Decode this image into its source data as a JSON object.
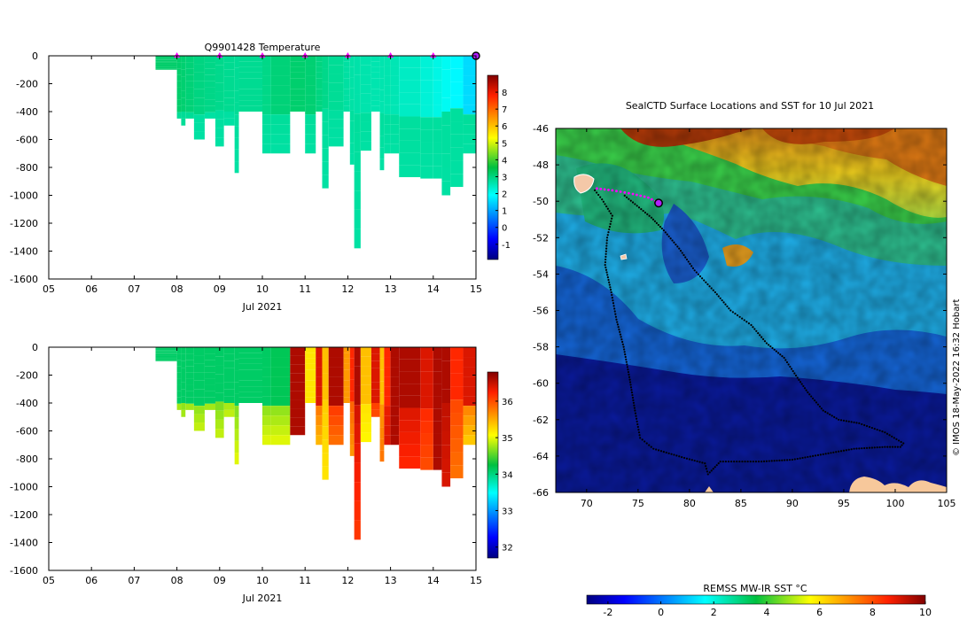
{
  "chart_data": [
    {
      "type": "heatmap",
      "panel": "temperature-section",
      "title": "Q9901428  Temperature",
      "xlabel": "Jul 2021",
      "ylabel": "",
      "x_ticks": [
        "05",
        "06",
        "07",
        "08",
        "09",
        "10",
        "11",
        "12",
        "13",
        "14",
        "15"
      ],
      "y_ticks": [
        0,
        -200,
        -400,
        -600,
        -800,
        -1000,
        -1200,
        -1400,
        -1600
      ],
      "xlim": [
        5,
        15
      ],
      "ylim": [
        -1600,
        0
      ],
      "colorbar": {
        "ticks": [
          -1,
          0,
          1,
          2,
          3,
          4,
          5,
          6,
          7,
          8
        ],
        "range": [
          -1.9,
          9
        ]
      },
      "profile_marker_days": [
        8,
        9,
        10,
        11,
        12,
        13,
        14
      ],
      "current_position_day": 15,
      "profiles": [
        {
          "start": 7.5,
          "end": 8.0,
          "depth": -100,
          "v_top": 3.2,
          "v_bottom": 3.2
        },
        {
          "start": 8.0,
          "end": 8.1,
          "depth": -450,
          "v_top": 3.0,
          "v_bottom": 2.8
        },
        {
          "start": 8.1,
          "end": 8.2,
          "depth": -500,
          "v_top": 2.9,
          "v_bottom": 2.8
        },
        {
          "start": 8.2,
          "end": 8.4,
          "depth": -450,
          "v_top": 2.9,
          "v_bottom": 2.8
        },
        {
          "start": 8.4,
          "end": 8.65,
          "depth": -600,
          "v_top": 2.8,
          "v_bottom": 2.7
        },
        {
          "start": 8.65,
          "end": 8.9,
          "depth": -450,
          "v_top": 2.8,
          "v_bottom": 2.7
        },
        {
          "start": 8.9,
          "end": 9.1,
          "depth": -650,
          "v_top": 2.8,
          "v_bottom": 2.7
        },
        {
          "start": 9.1,
          "end": 9.35,
          "depth": -500,
          "v_top": 2.8,
          "v_bottom": 2.7
        },
        {
          "start": 9.35,
          "end": 9.45,
          "depth": -840,
          "v_top": 2.8,
          "v_bottom": 2.7
        },
        {
          "start": 9.45,
          "end": 10.0,
          "depth": -400,
          "v_top": 2.8,
          "v_bottom": 2.7
        },
        {
          "start": 10.0,
          "end": 10.2,
          "depth": -700,
          "v_top": 2.9,
          "v_bottom": 2.7
        },
        {
          "start": 10.2,
          "end": 10.65,
          "depth": -700,
          "v_top": 2.9,
          "v_bottom": 2.7
        },
        {
          "start": 10.65,
          "end": 11.0,
          "depth": -400,
          "v_top": 2.9,
          "v_bottom": 2.7
        },
        {
          "start": 11.0,
          "end": 11.25,
          "depth": -700,
          "v_top": 2.9,
          "v_bottom": 2.7
        },
        {
          "start": 11.25,
          "end": 11.4,
          "depth": -400,
          "v_top": 2.9,
          "v_bottom": 2.7
        },
        {
          "start": 11.4,
          "end": 11.55,
          "depth": -950,
          "v_top": 2.8,
          "v_bottom": 2.7
        },
        {
          "start": 11.55,
          "end": 11.9,
          "depth": -650,
          "v_top": 2.8,
          "v_bottom": 2.7
        },
        {
          "start": 11.9,
          "end": 12.05,
          "depth": -400,
          "v_top": 2.8,
          "v_bottom": 2.7
        },
        {
          "start": 12.05,
          "end": 12.15,
          "depth": -780,
          "v_top": 2.8,
          "v_bottom": 2.7
        },
        {
          "start": 12.15,
          "end": 12.3,
          "depth": -1380,
          "v_top": 2.8,
          "v_bottom": 2.7
        },
        {
          "start": 12.3,
          "end": 12.55,
          "depth": -680,
          "v_top": 2.8,
          "v_bottom": 2.7
        },
        {
          "start": 12.55,
          "end": 12.75,
          "depth": -400,
          "v_top": 2.8,
          "v_bottom": 2.7
        },
        {
          "start": 12.75,
          "end": 12.85,
          "depth": -820,
          "v_top": 2.8,
          "v_bottom": 2.7
        },
        {
          "start": 12.85,
          "end": 13.0,
          "depth": -700,
          "v_top": 2.8,
          "v_bottom": 2.7
        },
        {
          "start": 13.0,
          "end": 13.2,
          "depth": -700,
          "v_top": 2.8,
          "v_bottom": 2.7
        },
        {
          "start": 13.2,
          "end": 13.7,
          "depth": -870,
          "v_top": 2.8,
          "v_bottom": 2.7
        },
        {
          "start": 13.7,
          "end": 14.0,
          "depth": -880,
          "v_top": 2.8,
          "v_bottom": 2.7
        },
        {
          "start": 14.0,
          "end": 14.2,
          "depth": -880,
          "v_top": 2.8,
          "v_bottom": 2.7
        },
        {
          "start": 14.2,
          "end": 14.4,
          "depth": -1000,
          "v_top": 2.8,
          "v_bottom": 2.7
        },
        {
          "start": 14.4,
          "end": 14.7,
          "depth": -940,
          "v_top": 2.8,
          "v_bottom": 2.7
        },
        {
          "start": 14.7,
          "end": 15.0,
          "depth": -700,
          "v_top": 2.9,
          "v_bottom": 2.7
        }
      ],
      "upper_layer": {
        "depth": -400,
        "values_by_day": [
          [
            8,
            3.2
          ],
          [
            8.5,
            3.0
          ],
          [
            9,
            2.9
          ],
          [
            9.5,
            2.8
          ],
          [
            10,
            2.9
          ],
          [
            10.5,
            3.1
          ],
          [
            11,
            3.2
          ],
          [
            11.5,
            2.9
          ],
          [
            12,
            2.7
          ],
          [
            12.5,
            2.6
          ],
          [
            13,
            2.6
          ],
          [
            13.5,
            2.4
          ],
          [
            14,
            2.2
          ],
          [
            14.5,
            1.9
          ],
          [
            15,
            1.4
          ]
        ]
      }
    },
    {
      "type": "heatmap",
      "panel": "salinity-section",
      "title": "",
      "xlabel": "Jul 2021",
      "ylabel": "",
      "x_ticks": [
        "05",
        "06",
        "07",
        "08",
        "09",
        "10",
        "11",
        "12",
        "13",
        "14",
        "15"
      ],
      "y_ticks": [
        0,
        -200,
        -400,
        -600,
        -800,
        -1000,
        -1200,
        -1400,
        -1600
      ],
      "xlim": [
        5,
        15
      ],
      "ylim": [
        -1600,
        0
      ],
      "colorbar": {
        "ticks": [
          32,
          33,
          34,
          35,
          36
        ],
        "range": [
          31.7,
          36.8
        ]
      },
      "profiles": [
        {
          "start": 7.5,
          "end": 8.0,
          "depth": -100,
          "v_top": 34.1,
          "v_bottom": 34.1
        },
        {
          "start": 8.0,
          "end": 8.1,
          "depth": -450,
          "v_top": 34.2,
          "v_bottom": 34.8
        },
        {
          "start": 8.1,
          "end": 8.2,
          "depth": -500,
          "v_top": 34.2,
          "v_bottom": 34.8
        },
        {
          "start": 8.2,
          "end": 8.4,
          "depth": -450,
          "v_top": 34.2,
          "v_bottom": 34.8
        },
        {
          "start": 8.4,
          "end": 8.65,
          "depth": -600,
          "v_top": 34.2,
          "v_bottom": 34.9
        },
        {
          "start": 8.65,
          "end": 8.9,
          "depth": -450,
          "v_top": 34.2,
          "v_bottom": 34.8
        },
        {
          "start": 8.9,
          "end": 9.1,
          "depth": -650,
          "v_top": 34.2,
          "v_bottom": 34.9
        },
        {
          "start": 9.1,
          "end": 9.35,
          "depth": -500,
          "v_top": 34.2,
          "v_bottom": 34.9
        },
        {
          "start": 9.35,
          "end": 9.45,
          "depth": -840,
          "v_top": 34.3,
          "v_bottom": 35.0
        },
        {
          "start": 9.45,
          "end": 10.0,
          "depth": -400,
          "v_top": 34.2,
          "v_bottom": 34.7
        },
        {
          "start": 10.0,
          "end": 10.2,
          "depth": -700,
          "v_top": 34.2,
          "v_bottom": 35.0
        },
        {
          "start": 10.2,
          "end": 10.65,
          "depth": -700,
          "v_top": 34.2,
          "v_bottom": 35.0
        },
        {
          "start": 10.65,
          "end": 11.0,
          "depth": -630,
          "v_top": 36.6,
          "v_bottom": 36.6
        },
        {
          "start": 11.0,
          "end": 11.25,
          "depth": -400,
          "v_top": 35.2,
          "v_bottom": 35.6
        },
        {
          "start": 11.25,
          "end": 11.4,
          "depth": -700,
          "v_top": 36.4,
          "v_bottom": 35.4
        },
        {
          "start": 11.4,
          "end": 11.55,
          "depth": -950,
          "v_top": 35.4,
          "v_bottom": 35.2
        },
        {
          "start": 11.55,
          "end": 11.9,
          "depth": -700,
          "v_top": 36.6,
          "v_bottom": 35.8
        },
        {
          "start": 11.9,
          "end": 12.05,
          "depth": -400,
          "v_top": 35.6,
          "v_bottom": 35.8
        },
        {
          "start": 12.05,
          "end": 12.15,
          "depth": -780,
          "v_top": 36.2,
          "v_bottom": 35.6
        },
        {
          "start": 12.15,
          "end": 12.3,
          "depth": -1380,
          "v_top": 36.6,
          "v_bottom": 36.1
        },
        {
          "start": 12.3,
          "end": 12.55,
          "depth": -680,
          "v_top": 35.4,
          "v_bottom": 35.1
        },
        {
          "start": 12.55,
          "end": 12.75,
          "depth": -500,
          "v_top": 36.4,
          "v_bottom": 36.0
        },
        {
          "start": 12.75,
          "end": 12.85,
          "depth": -820,
          "v_top": 35.4,
          "v_bottom": 35.8
        },
        {
          "start": 12.85,
          "end": 13.0,
          "depth": -700,
          "v_top": 36.2,
          "v_bottom": 36.4
        },
        {
          "start": 13.0,
          "end": 13.2,
          "depth": -700,
          "v_top": 36.6,
          "v_bottom": 36.6
        },
        {
          "start": 13.2,
          "end": 13.7,
          "depth": -870,
          "v_top": 36.6,
          "v_bottom": 36.2
        },
        {
          "start": 13.7,
          "end": 14.0,
          "depth": -880,
          "v_top": 36.4,
          "v_bottom": 36.0
        },
        {
          "start": 14.0,
          "end": 14.2,
          "depth": -880,
          "v_top": 36.6,
          "v_bottom": 36.6
        },
        {
          "start": 14.2,
          "end": 14.4,
          "depth": -1000,
          "v_top": 36.6,
          "v_bottom": 36.4
        },
        {
          "start": 14.4,
          "end": 14.7,
          "depth": -940,
          "v_top": 36.2,
          "v_bottom": 35.8
        },
        {
          "start": 14.7,
          "end": 15.0,
          "depth": -700,
          "v_top": 36.4,
          "v_bottom": 35.3
        }
      ],
      "upper_layer": {
        "depth": -400,
        "values_by_day": [
          [
            8,
            34.1
          ],
          [
            9,
            34.1
          ],
          [
            10,
            34.1
          ],
          [
            10.7,
            34.2
          ],
          [
            11,
            35.2
          ],
          [
            15,
            35.5
          ]
        ]
      }
    },
    {
      "type": "heatmap",
      "panel": "sst-map",
      "title": "SealCTD Surface Locations and SST for 10 Jul 2021",
      "xlabel": "",
      "ylabel": "",
      "x_ticks": [
        70,
        75,
        80,
        85,
        90,
        95,
        100,
        105
      ],
      "y_ticks": [
        -46,
        -48,
        -50,
        -52,
        -54,
        -56,
        -58,
        -60,
        -62,
        -64,
        -66
      ],
      "xlim": [
        67,
        105
      ],
      "ylim": [
        -66,
        -46
      ],
      "colorbar": {
        "label": "REMSS MW-IR SST °C",
        "ticks": [
          -2,
          0,
          2,
          4,
          6,
          8,
          10
        ],
        "range": [
          -2.8,
          10
        ]
      },
      "credit": "© IMOS 18-May-2022 16:32 Hobart",
      "current_position": {
        "lon": 77.0,
        "lat": -50.1
      },
      "recent_track": [
        [
          71.0,
          -49.3
        ],
        [
          72.5,
          -49.4
        ],
        [
          74.5,
          -49.6
        ],
        [
          76.0,
          -49.8
        ],
        [
          77.0,
          -50.1
        ]
      ],
      "track": [
        [
          70.8,
          -49.4
        ],
        [
          71.5,
          -49.9
        ],
        [
          72.5,
          -50.8
        ],
        [
          72.0,
          -52.0
        ],
        [
          71.8,
          -53.5
        ],
        [
          72.4,
          -55.0
        ],
        [
          72.9,
          -56.5
        ],
        [
          73.6,
          -58.0
        ],
        [
          74.2,
          -59.8
        ],
        [
          74.7,
          -61.5
        ],
        [
          75.2,
          -63.0
        ],
        [
          76.5,
          -63.6
        ],
        [
          79.5,
          -64.1
        ],
        [
          81.5,
          -64.4
        ],
        [
          81.8,
          -65.0
        ],
        [
          83.0,
          -64.3
        ],
        [
          87.0,
          -64.3
        ],
        [
          90.0,
          -64.2
        ],
        [
          93.0,
          -63.9
        ],
        [
          96.0,
          -63.6
        ],
        [
          99.0,
          -63.5
        ],
        [
          100.5,
          -63.5
        ],
        [
          100.8,
          -63.3
        ],
        [
          99.0,
          -62.7
        ],
        [
          96.5,
          -62.2
        ],
        [
          94.5,
          -62.0
        ],
        [
          93.0,
          -61.5
        ],
        [
          91.5,
          -60.5
        ],
        [
          90.5,
          -59.7
        ],
        [
          89.2,
          -58.6
        ],
        [
          87.5,
          -57.8
        ],
        [
          86.0,
          -56.8
        ],
        [
          84.0,
          -56.0
        ],
        [
          82.5,
          -55.0
        ],
        [
          80.5,
          -53.8
        ],
        [
          79.0,
          -52.6
        ],
        [
          77.5,
          -51.6
        ],
        [
          76.3,
          -50.9
        ],
        [
          73.5,
          -49.6
        ]
      ]
    }
  ]
}
